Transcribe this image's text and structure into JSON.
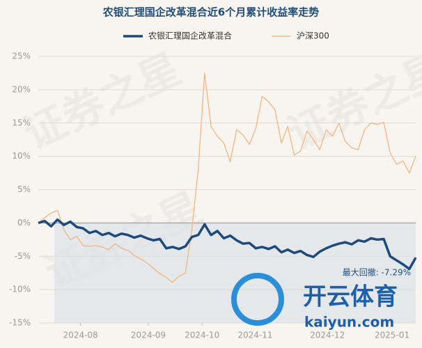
{
  "chart_data": {
    "type": "line",
    "title": "农银汇理国企改革混合近6个月累计收益率走势",
    "annotation": "最大回撤: -7.29%",
    "watermark": "证券之星",
    "logo": {
      "name": "开云体育",
      "site": "kaiyun.com"
    },
    "ylim": [
      -15,
      25
    ],
    "yticks": [
      {
        "value": -15,
        "label": "-15%"
      },
      {
        "value": -10,
        "label": "-10%"
      },
      {
        "value": -5,
        "label": "-5%"
      },
      {
        "value": 0,
        "label": "0%"
      },
      {
        "value": 5,
        "label": "5%"
      },
      {
        "value": 10,
        "label": "10%"
      },
      {
        "value": 15,
        "label": "15%"
      },
      {
        "value": 20,
        "label": "20%"
      },
      {
        "value": 25,
        "label": "25%"
      }
    ],
    "xlim": [
      0,
      59
    ],
    "xticks": [
      {
        "value": 6.6,
        "label": "2024-08"
      },
      {
        "value": 17.2,
        "label": "2024-09"
      },
      {
        "value": 25.6,
        "label": "2024-10"
      },
      {
        "value": 33.9,
        "label": "2024-11"
      },
      {
        "value": 45.2,
        "label": "2024-12"
      },
      {
        "value": 55.3,
        "label": "2025-01"
      }
    ],
    "grid": true,
    "series": [
      {
        "name": "农银汇理国企改革混合",
        "color": "#1d4a7a",
        "width": 3.5,
        "values": [
          0.0,
          0.3,
          -0.5,
          0.5,
          -0.3,
          0.2,
          -0.6,
          -0.8,
          -1.5,
          -1.2,
          -1.8,
          -1.5,
          -2.0,
          -1.6,
          -1.8,
          -2.2,
          -1.9,
          -2.3,
          -2.6,
          -2.4,
          -3.8,
          -3.6,
          -3.9,
          -3.5,
          -2.1,
          -1.8,
          -0.2,
          -1.8,
          -1.2,
          -2.3,
          -1.9,
          -2.6,
          -3.1,
          -3.0,
          -3.8,
          -3.6,
          -3.9,
          -3.5,
          -4.4,
          -4.0,
          -4.5,
          -4.2,
          -4.8,
          -5.1,
          -4.3,
          -3.8,
          -3.4,
          -3.1,
          -2.9,
          -3.2,
          -2.6,
          -2.8,
          -2.3,
          -2.5,
          -2.4,
          -5.0,
          -5.6,
          -6.2,
          -6.9,
          -5.2
        ]
      },
      {
        "name": "沪深300",
        "color": "#f0b27a",
        "width": 1.2,
        "values": [
          0.0,
          0.8,
          1.5,
          1.9,
          -1.0,
          -2.5,
          -2.0,
          -3.4,
          -3.5,
          -3.4,
          -3.6,
          -4.0,
          -3.1,
          -3.8,
          -4.1,
          -4.9,
          -5.4,
          -6.0,
          -6.8,
          -7.6,
          -8.2,
          -8.9,
          -8.0,
          -7.5,
          -1.0,
          8.0,
          22.5,
          14.5,
          13.0,
          12.0,
          9.2,
          14.0,
          13.2,
          11.8,
          14.2,
          19.0,
          18.2,
          17.0,
          12.0,
          14.5,
          10.2,
          10.8,
          13.8,
          12.5,
          11.0,
          14.0,
          13.0,
          15.0,
          12.2,
          11.3,
          11.0,
          14.0,
          15.0,
          14.8,
          15.1,
          10.5,
          8.8,
          9.3,
          7.5,
          10.0
        ]
      }
    ]
  }
}
